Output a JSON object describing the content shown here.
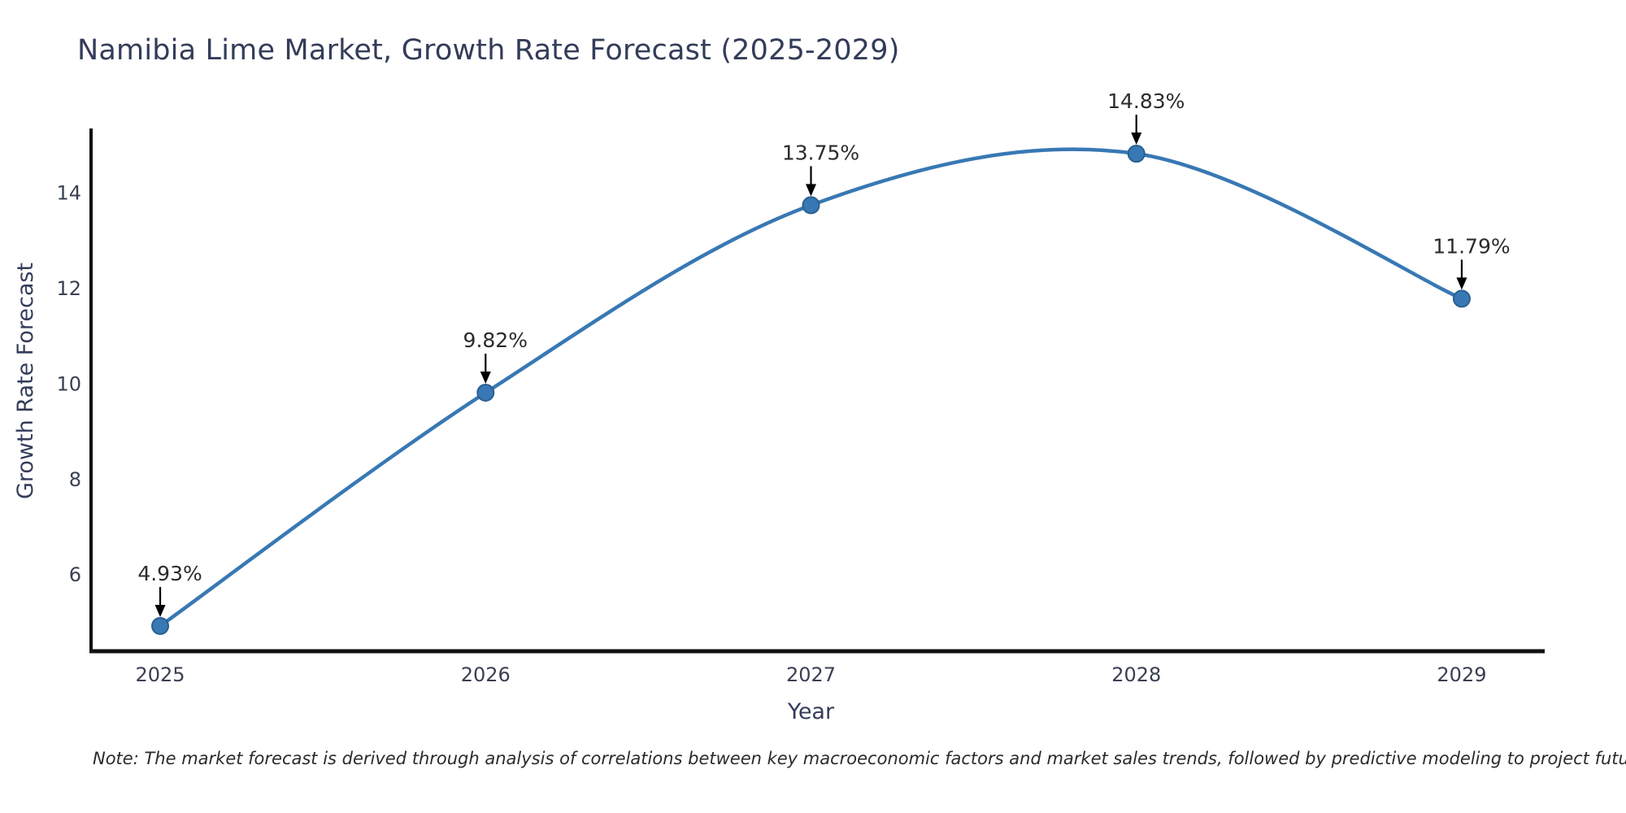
{
  "chart_data": {
    "type": "line",
    "title": "Namibia Lime Market, Growth Rate Forecast (2025-2029)",
    "xlabel": "Year",
    "ylabel": "Growth Rate Forecast",
    "x": [
      2025,
      2026,
      2027,
      2028,
      2029
    ],
    "values": [
      4.93,
      9.82,
      13.75,
      14.83,
      11.79
    ],
    "point_labels": [
      "4.93%",
      "9.82%",
      "13.75%",
      "14.83%",
      "11.79%"
    ],
    "xticks": [
      "2025",
      "2026",
      "2027",
      "2028",
      "2029"
    ],
    "yticks": [
      6,
      8,
      10,
      12,
      14
    ],
    "xlim": [
      2024.8,
      2029.2
    ],
    "ylim": [
      4.435,
      15.325
    ],
    "grid": false,
    "legend": null,
    "smooth": true,
    "line_color": "#3878b4",
    "marker_color": "#3878b4",
    "marker_edge_color": "#2a5f8f",
    "spine_color": "#111111",
    "arrow_color": "#000000",
    "note": "Note: The market forecast is derived through analysis of correlations between key macroeconomic factors and market sales trends, followed by predictive modeling to project future sales"
  }
}
